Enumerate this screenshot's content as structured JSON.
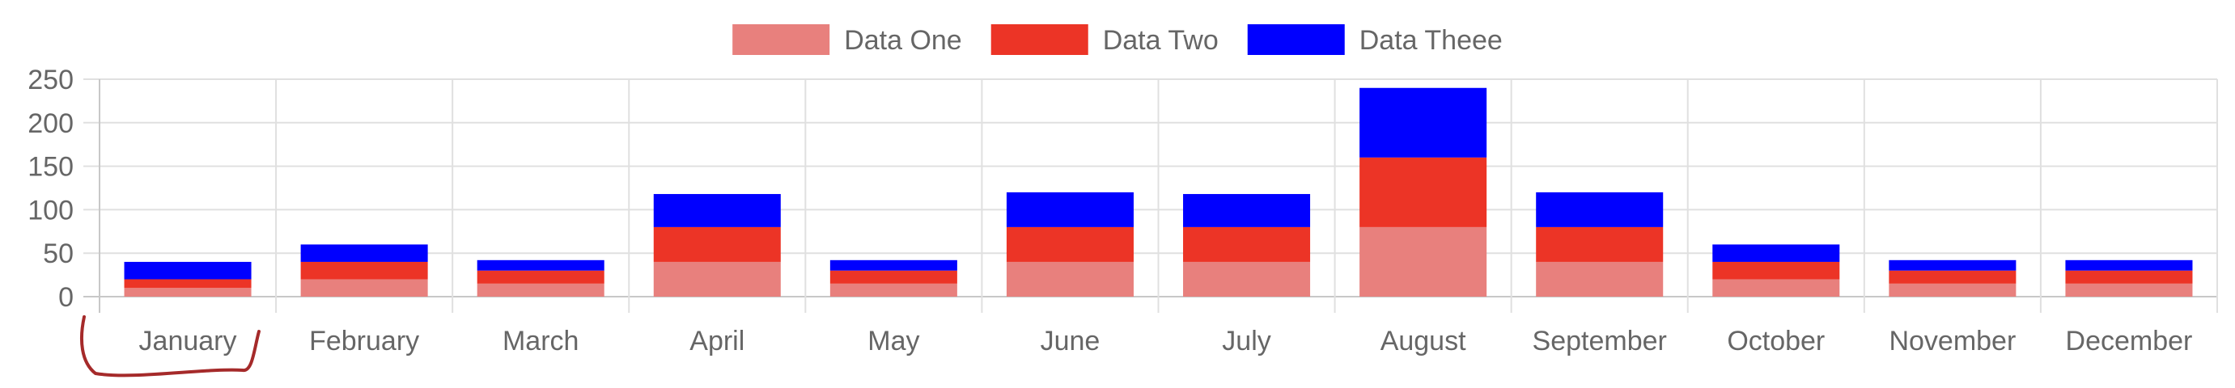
{
  "chart_data": {
    "type": "bar",
    "stacked": true,
    "categories": [
      "January",
      "February",
      "March",
      "April",
      "May",
      "June",
      "July",
      "August",
      "September",
      "October",
      "November",
      "December"
    ],
    "series": [
      {
        "name": "Data One",
        "color": "#e8807d",
        "values": [
          10,
          20,
          15,
          40,
          15,
          40,
          40,
          80,
          40,
          20,
          15,
          15
        ]
      },
      {
        "name": "Data Two",
        "color": "#ec3426",
        "values": [
          10,
          20,
          15,
          40,
          15,
          40,
          40,
          80,
          40,
          20,
          15,
          15
        ]
      },
      {
        "name": "Data Theee",
        "color": "#0000ff",
        "values": [
          20,
          20,
          12,
          38,
          12,
          40,
          38,
          80,
          40,
          20,
          12,
          12
        ]
      }
    ],
    "ylim": [
      0,
      250
    ],
    "yticks": [
      "0",
      "50",
      "100",
      "150",
      "200",
      "250"
    ],
    "grid": true,
    "legend_position": "top-center",
    "annotation": {
      "type": "hand-drawn underline",
      "target": "January",
      "color": "#a52a2a"
    }
  }
}
